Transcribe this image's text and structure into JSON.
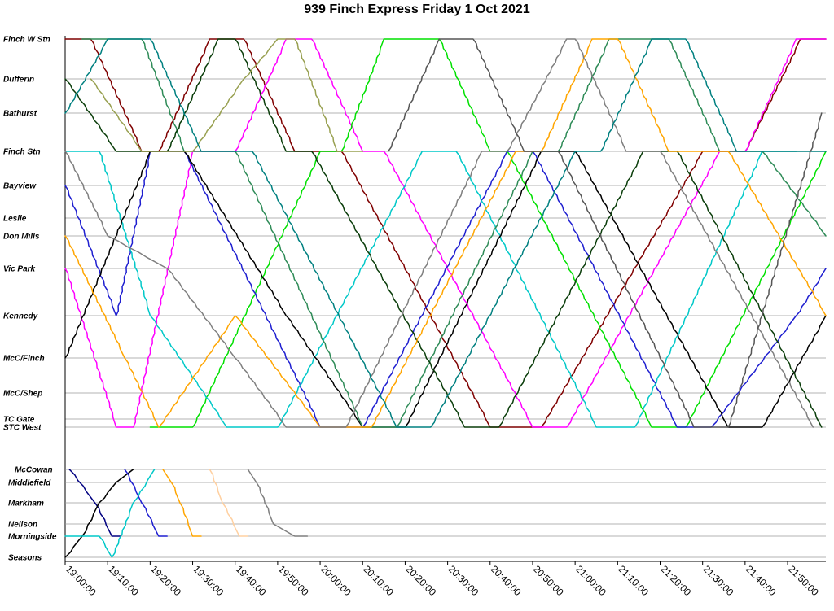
{
  "chart_data": {
    "type": "line",
    "title": "939 Finch Express Friday 1 Oct 2021",
    "xlabel": "",
    "ylabel": "",
    "x_ticks": [
      "19:00:00",
      "19:10:00",
      "19:20:00",
      "19:30:00",
      "19:40:00",
      "19:50:00",
      "20:00:00",
      "20:10:00",
      "20:20:00",
      "20:30:00",
      "20:40:00",
      "20:50:00",
      "21:00:00",
      "21:10:00",
      "21:20:00",
      "21:30:00",
      "21:40:00",
      "21:50:00"
    ],
    "x_range": [
      "19:00:00",
      "21:59:00"
    ],
    "grid": true,
    "legend": "none",
    "y_stops_main": [
      "Finch W Stn",
      "Dufferin",
      "Bathurst",
      "Finch Stn",
      "Bayview",
      "Leslie",
      "Don Mills",
      "Vic Park",
      "Kennedy",
      "McC/Finch",
      "McC/Shep",
      "TC Gate",
      "STC West"
    ],
    "y_stops_branch": [
      "McCowan",
      "Middlefield",
      "Markham",
      "Neilson",
      "Morningside",
      "Seasons"
    ],
    "series_colors": [
      "#000000",
      "#1f1fd0",
      "#ff00ff",
      "#00c8c8",
      "#7f0000",
      "#2e8b57",
      "#00e000",
      "#555555",
      "#ffa500",
      "#98a050",
      "#008080",
      "#7f7f7f",
      "#0a3d0a",
      "#ffc0cb",
      "#000080",
      "#c8c800",
      "#d2a060"
    ],
    "series": [
      {
        "color": "#7f0000",
        "points": [
          [
            "19:00:00",
            "Finch W Stn"
          ],
          [
            "19:06:00",
            "Finch W Stn"
          ],
          [
            "19:18:00",
            "Finch Stn"
          ],
          [
            "19:22:00",
            "Finch Stn"
          ],
          [
            "19:34:00",
            "Finch W Stn"
          ],
          [
            "19:42:00",
            "Finch W Stn"
          ],
          [
            "19:54:00",
            "Finch Stn"
          ],
          [
            "20:05:00",
            "Finch Stn"
          ],
          [
            "20:40:00",
            "STC West"
          ],
          [
            "20:52:00",
            "STC West"
          ],
          [
            "21:30:00",
            "Finch Stn"
          ],
          [
            "21:40:00",
            "Finch Stn"
          ],
          [
            "21:53:00",
            "Finch W Stn"
          ],
          [
            "21:59:00",
            "Finch W Stn"
          ]
        ]
      },
      {
        "color": "#ff00ff",
        "points": [
          [
            "19:00:00",
            "Vic Park"
          ],
          [
            "19:12:00",
            "STC West"
          ],
          [
            "19:16:00",
            "STC West"
          ],
          [
            "19:30:00",
            "Finch Stn"
          ],
          [
            "19:40:00",
            "Finch Stn"
          ],
          [
            "19:52:00",
            "Finch W Stn"
          ],
          [
            "19:58:00",
            "Finch W Stn"
          ],
          [
            "20:10:00",
            "Finch Stn"
          ],
          [
            "20:15:00",
            "Finch Stn"
          ],
          [
            "20:50:00",
            "STC West"
          ],
          [
            "20:58:00",
            "STC West"
          ],
          [
            "21:34:00",
            "Finch Stn"
          ],
          [
            "21:40:00",
            "Finch Stn"
          ],
          [
            "21:52:00",
            "Finch W Stn"
          ],
          [
            "21:59:00",
            "Finch W Stn"
          ]
        ]
      },
      {
        "color": "#00e000",
        "points": [
          [
            "19:20:00",
            "STC West"
          ],
          [
            "19:30:00",
            "STC West"
          ],
          [
            "20:00:00",
            "Finch Stn"
          ],
          [
            "20:05:00",
            "Finch Stn"
          ],
          [
            "20:15:00",
            "Finch W Stn"
          ],
          [
            "20:28:00",
            "Finch W Stn"
          ],
          [
            "20:40:00",
            "Finch Stn"
          ],
          [
            "20:44:00",
            "Finch Stn"
          ],
          [
            "21:18:00",
            "STC West"
          ],
          [
            "21:26:00",
            "STC West"
          ],
          [
            "21:59:00",
            "Finch Stn"
          ]
        ]
      },
      {
        "color": "#1f1fd0",
        "points": [
          [
            "19:00:00",
            "Bayview"
          ],
          [
            "19:12:00",
            "Kennedy"
          ],
          [
            "19:20:00",
            "Finch Stn"
          ],
          [
            "19:28:00",
            "Finch Stn"
          ],
          [
            "20:00:00",
            "STC West"
          ],
          [
            "20:10:00",
            "STC West"
          ],
          [
            "20:44:00",
            "Finch Stn"
          ],
          [
            "20:50:00",
            "Finch Stn"
          ],
          [
            "21:24:00",
            "STC West"
          ],
          [
            "21:32:00",
            "STC West"
          ],
          [
            "21:52:00",
            "Kennedy"
          ],
          [
            "21:59:00",
            "Vic Park"
          ]
        ]
      },
      {
        "color": "#00c8c8",
        "points": [
          [
            "19:00:00",
            "Finch Stn"
          ],
          [
            "19:08:00",
            "Finch Stn"
          ],
          [
            "19:20:00",
            "Kennedy"
          ],
          [
            "19:38:00",
            "STC West"
          ],
          [
            "19:50:00",
            "STC West"
          ],
          [
            "20:24:00",
            "Finch Stn"
          ],
          [
            "20:32:00",
            "Finch Stn"
          ],
          [
            "21:05:00",
            "STC West"
          ],
          [
            "21:14:00",
            "STC West"
          ],
          [
            "21:44:00",
            "Finch Stn"
          ],
          [
            "21:52:00",
            "Finch Stn"
          ]
        ]
      },
      {
        "color": "#000000",
        "points": [
          [
            "19:00:00",
            "McC/Finch"
          ],
          [
            "19:20:00",
            "Finch Stn"
          ],
          [
            "19:28:00",
            "Finch Stn"
          ],
          [
            "19:52:00",
            "Kennedy"
          ],
          [
            "20:10:00",
            "STC West"
          ],
          [
            "20:20:00",
            "STC West"
          ],
          [
            "20:52:00",
            "Finch Stn"
          ],
          [
            "21:00:00",
            "Finch Stn"
          ],
          [
            "21:36:00",
            "STC West"
          ],
          [
            "21:44:00",
            "STC West"
          ],
          [
            "21:59:00",
            "Kennedy"
          ]
        ]
      },
      {
        "color": "#2e8b57",
        "points": [
          [
            "19:04:00",
            "Finch W Stn"
          ],
          [
            "19:18:00",
            "Finch W Stn"
          ],
          [
            "19:28:00",
            "Finch Stn"
          ],
          [
            "19:40:00",
            "Finch Stn"
          ],
          [
            "20:10:00",
            "STC West"
          ],
          [
            "20:18:00",
            "STC West"
          ],
          [
            "20:50:00",
            "Finch Stn"
          ],
          [
            "20:56:00",
            "Finch Stn"
          ],
          [
            "21:08:00",
            "Finch W Stn"
          ],
          [
            "21:22:00",
            "Finch W Stn"
          ],
          [
            "21:34:00",
            "Finch Stn"
          ],
          [
            "21:44:00",
            "Finch Stn"
          ],
          [
            "21:59:00",
            "Don Mills"
          ]
        ]
      },
      {
        "color": "#0a3d0a",
        "points": [
          [
            "19:00:00",
            "Dufferin"
          ],
          [
            "19:12:00",
            "Finch Stn"
          ],
          [
            "19:24:00",
            "Finch Stn"
          ],
          [
            "19:36:00",
            "Finch W Stn"
          ],
          [
            "19:40:00",
            "Finch W Stn"
          ],
          [
            "19:52:00",
            "Finch Stn"
          ],
          [
            "19:58:00",
            "Finch Stn"
          ],
          [
            "20:34:00",
            "STC West"
          ],
          [
            "20:42:00",
            "STC West"
          ],
          [
            "21:16:00",
            "Finch Stn"
          ],
          [
            "21:24:00",
            "Finch Stn"
          ],
          [
            "21:58:00",
            "STC West"
          ]
        ]
      },
      {
        "color": "#ffa500",
        "points": [
          [
            "19:00:00",
            "Don Mills"
          ],
          [
            "19:14:00",
            "McC/Finch"
          ],
          [
            "19:22:00",
            "STC West"
          ],
          [
            "19:40:00",
            "Kennedy"
          ],
          [
            "20:00:00",
            "STC West"
          ],
          [
            "20:12:00",
            "STC West"
          ],
          [
            "20:46:00",
            "Finch Stn"
          ],
          [
            "20:52:00",
            "Finch Stn"
          ],
          [
            "21:04:00",
            "Finch W Stn"
          ],
          [
            "21:10:00",
            "Finch W Stn"
          ],
          [
            "21:22:00",
            "Finch Stn"
          ],
          [
            "21:36:00",
            "Finch Stn"
          ],
          [
            "21:59:00",
            "Kennedy"
          ]
        ]
      },
      {
        "color": "#98a050",
        "points": [
          [
            "19:06:00",
            "Dufferin"
          ],
          [
            "19:18:00",
            "Finch Stn"
          ],
          [
            "19:30:00",
            "Finch Stn"
          ],
          [
            "19:42:00",
            "Dufferin"
          ],
          [
            "19:50:00",
            "Finch W Stn"
          ],
          [
            "19:54:00",
            "Finch W Stn"
          ],
          [
            "20:04:00",
            "Finch Stn"
          ],
          [
            "20:10:00",
            "Finch Stn"
          ]
        ]
      },
      {
        "color": "#7f7f7f",
        "points": [
          [
            "19:00:00",
            "Finch Stn"
          ],
          [
            "19:10:00",
            "Don Mills"
          ],
          [
            "19:24:00",
            "Vic Park"
          ],
          [
            "19:40:00",
            "McC/Finch"
          ],
          [
            "19:52:00",
            "STC West"
          ],
          [
            "20:06:00",
            "STC West"
          ],
          [
            "20:38:00",
            "Finch Stn"
          ],
          [
            "20:44:00",
            "Finch Stn"
          ],
          [
            "20:58:00",
            "Finch W Stn"
          ],
          [
            "21:00:00",
            "Finch W Stn"
          ],
          [
            "21:12:00",
            "Finch Stn"
          ],
          [
            "21:20:00",
            "Finch Stn"
          ],
          [
            "21:56:00",
            "STC West"
          ]
        ]
      },
      {
        "color": "#008080",
        "points": [
          [
            "19:00:00",
            "Bathurst"
          ],
          [
            "19:10:00",
            "Finch W Stn"
          ],
          [
            "19:20:00",
            "Finch W Stn"
          ],
          [
            "19:32:00",
            "Finch Stn"
          ],
          [
            "19:44:00",
            "Finch Stn"
          ],
          [
            "20:18:00",
            "STC West"
          ],
          [
            "20:26:00",
            "STC West"
          ],
          [
            "21:00:00",
            "Finch Stn"
          ],
          [
            "21:06:00",
            "Finch Stn"
          ],
          [
            "21:18:00",
            "Finch W Stn"
          ],
          [
            "21:26:00",
            "Finch W Stn"
          ],
          [
            "21:38:00",
            "Finch Stn"
          ],
          [
            "21:59:00",
            "Finch Stn"
          ]
        ]
      },
      {
        "color": "#555555",
        "points": [
          [
            "20:16:00",
            "Finch Stn"
          ],
          [
            "20:28:00",
            "Finch W Stn"
          ],
          [
            "20:36:00",
            "Finch W Stn"
          ],
          [
            "20:48:00",
            "Finch Stn"
          ],
          [
            "20:56:00",
            "Finch Stn"
          ],
          [
            "21:28:00",
            "STC West"
          ],
          [
            "21:36:00",
            "STC West"
          ],
          [
            "21:58:00",
            "Bathurst"
          ]
        ]
      }
    ],
    "branch_series": [
      {
        "color": "#000080",
        "points": [
          [
            "19:01:00",
            "McCowan"
          ],
          [
            "19:07:00",
            "Markham"
          ],
          [
            "19:11:00",
            "Morningside"
          ],
          [
            "19:13:00",
            "Morningside"
          ]
        ]
      },
      {
        "color": "#000000",
        "points": [
          [
            "19:00:00",
            "Seasons"
          ],
          [
            "19:04:00",
            "Morningside"
          ],
          [
            "19:08:00",
            "Markham"
          ],
          [
            "19:12:00",
            "Middlefield"
          ],
          [
            "19:16:00",
            "McCowan"
          ]
        ]
      },
      {
        "color": "#00c8c8",
        "points": [
          [
            "19:00:00",
            "Morningside"
          ],
          [
            "19:08:00",
            "Morningside"
          ],
          [
            "19:11:00",
            "Seasons"
          ],
          [
            "19:16:00",
            "Markham"
          ],
          [
            "19:21:00",
            "McCowan"
          ]
        ]
      },
      {
        "color": "#1f1fd0",
        "points": [
          [
            "19:14:00",
            "McCowan"
          ],
          [
            "19:18:00",
            "Markham"
          ],
          [
            "19:22:00",
            "Morningside"
          ],
          [
            "19:24:00",
            "Morningside"
          ]
        ]
      },
      {
        "color": "#ffa500",
        "points": [
          [
            "19:23:00",
            "McCowan"
          ],
          [
            "19:25:00",
            "Middlefield"
          ],
          [
            "19:27:00",
            "Markham"
          ],
          [
            "19:30:00",
            "Morningside"
          ],
          [
            "19:32:00",
            "Morningside"
          ]
        ]
      },
      {
        "color": "#ffd0a0",
        "points": [
          [
            "19:34:00",
            "McCowan"
          ],
          [
            "19:37:00",
            "Markham"
          ],
          [
            "19:41:00",
            "Morningside"
          ],
          [
            "19:43:00",
            "Morningside"
          ]
        ]
      },
      {
        "color": "#7f7f7f",
        "points": [
          [
            "19:43:00",
            "McCowan"
          ],
          [
            "19:45:00",
            "Middlefield"
          ],
          [
            "19:49:00",
            "Neilson"
          ],
          [
            "19:54:00",
            "Morningside"
          ],
          [
            "19:57:00",
            "Morningside"
          ]
        ]
      }
    ]
  }
}
